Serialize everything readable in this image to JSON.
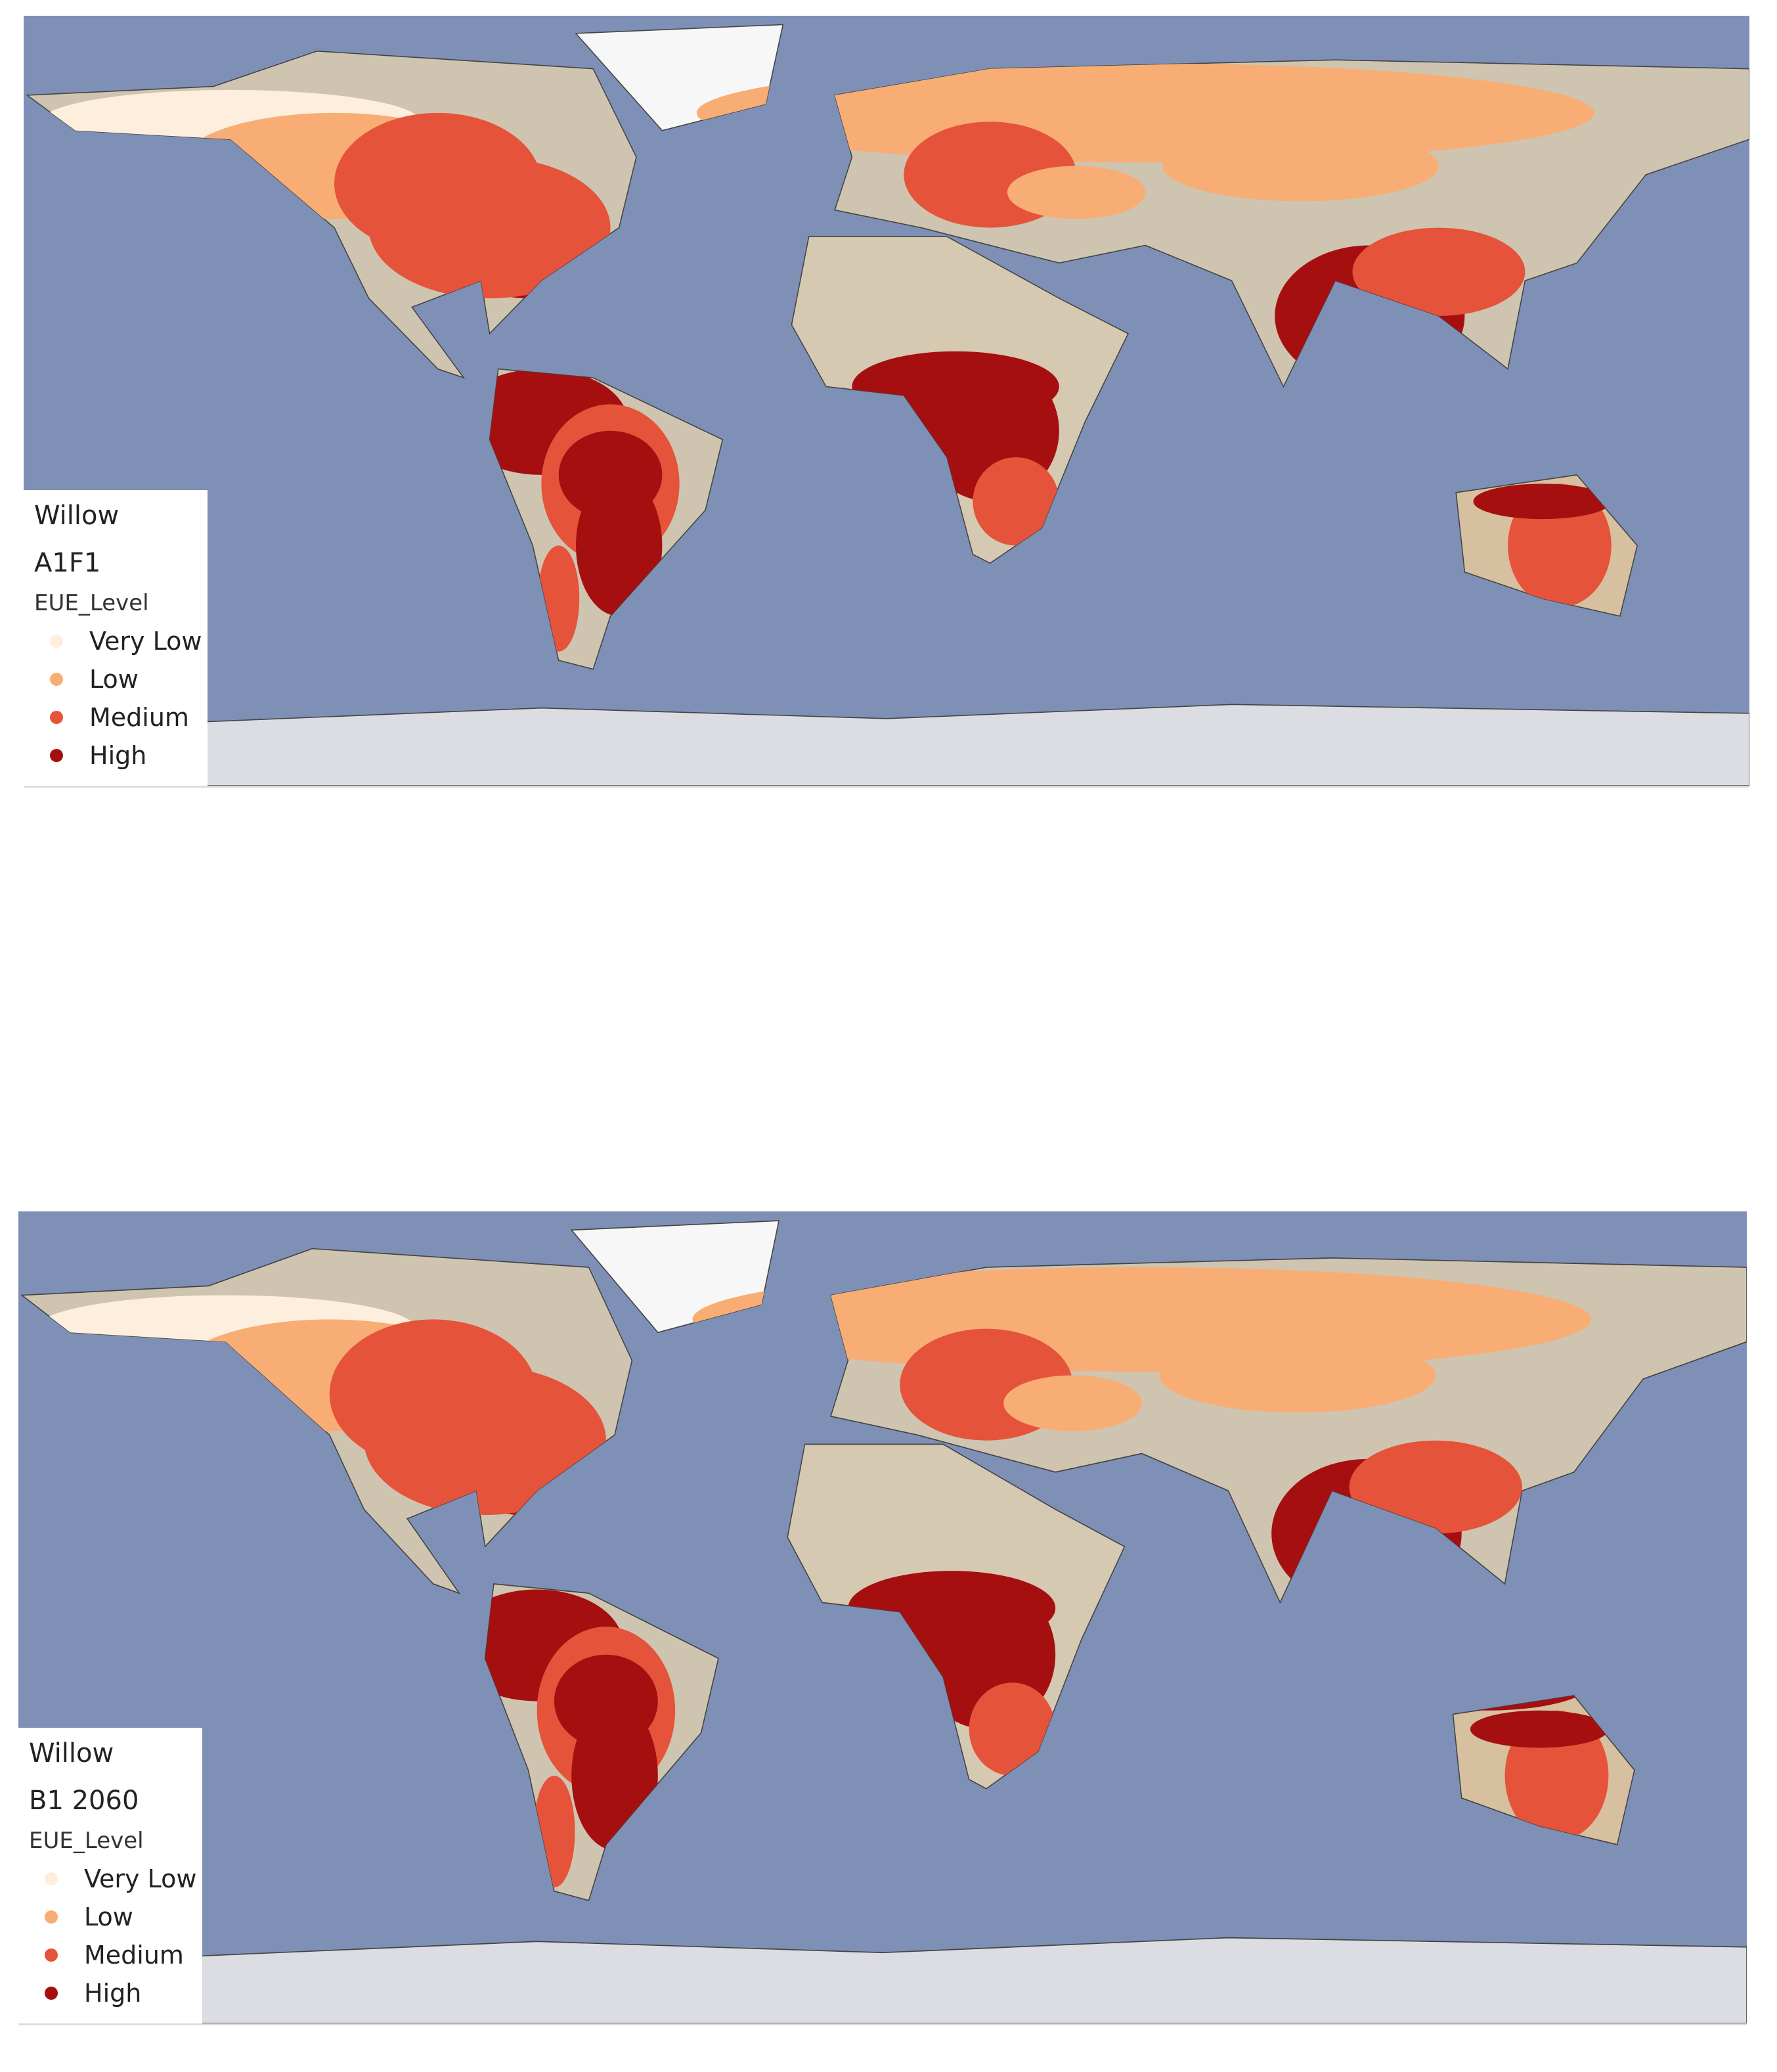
{
  "maps": [
    {
      "title": "Willow",
      "scenario": "A1F1",
      "legend": {
        "title": "EUE_Level",
        "items": [
          {
            "label": "Very Low",
            "color": "#fdeedd"
          },
          {
            "label": "Low",
            "color": "#f8ad74"
          },
          {
            "label": "Medium",
            "color": "#e5533a"
          },
          {
            "label": "High",
            "color": "#a50f0f"
          }
        ]
      }
    },
    {
      "title": "Willow",
      "scenario": "B1 2060",
      "legend": {
        "title": "EUE_Level",
        "items": [
          {
            "label": "Very Low",
            "color": "#fdeedd"
          },
          {
            "label": "Low",
            "color": "#f8ad74"
          },
          {
            "label": "Medium",
            "color": "#e5533a"
          },
          {
            "label": "High",
            "color": "#a50f0f"
          }
        ]
      }
    }
  ]
}
